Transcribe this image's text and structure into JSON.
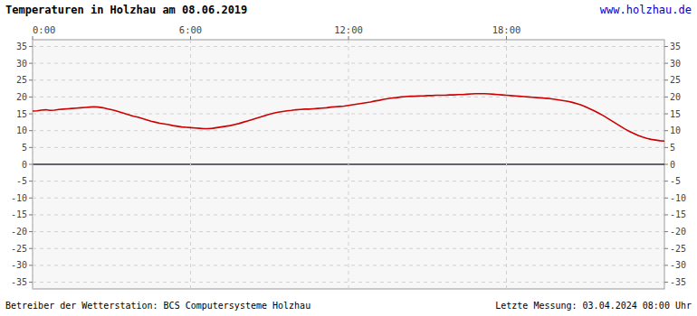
{
  "chart_data": {
    "type": "line",
    "title": "Temperaturen in Holzhau am 08.06.2019",
    "annotations": [
      "www.holzhau.de",
      "Betreiber der Wetterstation: BCS Computersysteme Holzhau",
      "Letzte Messung: 03.04.2024 08:00 Uhr"
    ],
    "color": "#cc0000",
    "grid": true,
    "xlim": [
      0,
      1440
    ],
    "ylim": [
      -37,
      37
    ],
    "xticks": [
      {
        "value": 0,
        "label": "0:00"
      },
      {
        "value": 360,
        "label": "6:00"
      },
      {
        "value": 720,
        "label": "12:00"
      },
      {
        "value": 1080,
        "label": "18:00"
      }
    ],
    "yticks": [
      -35,
      -30,
      -25,
      -20,
      -15,
      -10,
      -5,
      0,
      5,
      10,
      15,
      20,
      25,
      30,
      35
    ],
    "x": [
      0,
      10,
      20,
      30,
      40,
      50,
      60,
      70,
      80,
      90,
      100,
      110,
      120,
      130,
      140,
      150,
      160,
      170,
      180,
      190,
      200,
      210,
      220,
      230,
      240,
      250,
      260,
      270,
      280,
      290,
      300,
      310,
      320,
      330,
      340,
      350,
      360,
      370,
      380,
      390,
      400,
      410,
      420,
      430,
      440,
      450,
      460,
      470,
      480,
      490,
      500,
      510,
      520,
      530,
      540,
      550,
      560,
      570,
      580,
      590,
      600,
      610,
      620,
      630,
      640,
      650,
      660,
      670,
      680,
      690,
      700,
      710,
      720,
      730,
      740,
      750,
      760,
      770,
      780,
      790,
      800,
      810,
      820,
      830,
      840,
      850,
      860,
      870,
      880,
      890,
      900,
      910,
      920,
      930,
      940,
      950,
      960,
      970,
      980,
      990,
      1000,
      1010,
      1020,
      1030,
      1040,
      1050,
      1060,
      1070,
      1080,
      1090,
      1100,
      1110,
      1120,
      1130,
      1140,
      1150,
      1160,
      1170,
      1180,
      1190,
      1200,
      1210,
      1220,
      1230,
      1240,
      1250,
      1260,
      1270,
      1280,
      1290,
      1300,
      1310,
      1320,
      1330,
      1340,
      1350,
      1360,
      1370,
      1380,
      1390,
      1400,
      1410,
      1420,
      1430,
      1440
    ],
    "values": [
      15.8,
      15.9,
      16.1,
      16.2,
      16.0,
      16.1,
      16.3,
      16.4,
      16.5,
      16.6,
      16.7,
      16.8,
      16.9,
      17.0,
      17.1,
      17.0,
      16.8,
      16.5,
      16.2,
      15.9,
      15.5,
      15.1,
      14.7,
      14.3,
      14.0,
      13.6,
      13.2,
      12.8,
      12.5,
      12.2,
      12.0,
      11.8,
      11.5,
      11.3,
      11.1,
      11.0,
      10.9,
      10.8,
      10.7,
      10.6,
      10.6,
      10.7,
      10.9,
      11.1,
      11.3,
      11.5,
      11.8,
      12.1,
      12.5,
      12.9,
      13.3,
      13.7,
      14.1,
      14.5,
      14.9,
      15.2,
      15.5,
      15.7,
      15.9,
      16.0,
      16.2,
      16.3,
      16.4,
      16.4,
      16.5,
      16.6,
      16.7,
      16.8,
      17.0,
      17.1,
      17.2,
      17.3,
      17.5,
      17.7,
      17.9,
      18.1,
      18.3,
      18.5,
      18.8,
      19.0,
      19.3,
      19.5,
      19.7,
      19.8,
      20.0,
      20.1,
      20.2,
      20.2,
      20.3,
      20.3,
      20.4,
      20.4,
      20.5,
      20.5,
      20.5,
      20.6,
      20.6,
      20.7,
      20.7,
      20.8,
      20.9,
      21.0,
      21.0,
      21.0,
      20.9,
      20.8,
      20.7,
      20.6,
      20.5,
      20.4,
      20.3,
      20.2,
      20.1,
      20.0,
      19.9,
      19.8,
      19.7,
      19.6,
      19.5,
      19.3,
      19.1,
      18.9,
      18.7,
      18.4,
      18.0,
      17.6,
      17.1,
      16.5,
      15.9,
      15.2,
      14.5,
      13.7,
      12.9,
      12.1,
      11.3,
      10.5,
      9.8,
      9.2,
      8.6,
      8.1,
      7.7,
      7.4,
      7.2,
      7.0,
      6.9
    ]
  }
}
